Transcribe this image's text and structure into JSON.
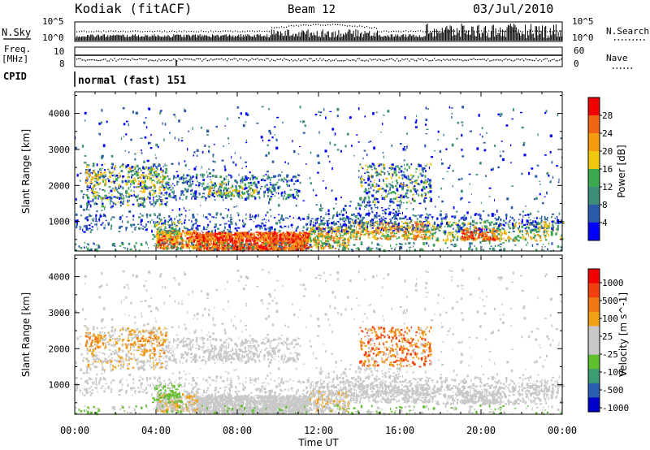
{
  "header": {
    "station": "Kodiak (fitACF)",
    "beam": "Beam 12",
    "date": "03/Jul/2010"
  },
  "strips": {
    "nsky_label": "N.Sky",
    "nsky_ticks": [
      "10^5",
      "10^0"
    ],
    "nsearch_label": "N.Search",
    "freq_label_1": "Freq.",
    "freq_label_2": "[MHz]",
    "freq_ticks": [
      "10",
      "8"
    ],
    "nave_label": "Nave",
    "nave_ticks": [
      "60",
      "0"
    ],
    "cpid_label": "CPID",
    "cpid_value": "normal (fast) 151"
  },
  "colors": {
    "power": [
      "#0000ff",
      "#2a5aa8",
      "#3d8c78",
      "#3ca850",
      "#f0c810",
      "#f59b0f",
      "#f06414",
      "#f00000"
    ],
    "velocity": [
      "#0000cc",
      "#2a5fb0",
      "#3d9c73",
      "#60c030",
      "#c8c8c8",
      "#c8c8c8",
      "#f0a014",
      "#f07814",
      "#f04010",
      "#f00000"
    ]
  },
  "chart_data": [
    {
      "type": "heatmap",
      "panel": "power",
      "ylabel": "Slant Range [km]",
      "yticks": [
        "4000",
        "3000",
        "2000",
        "1000"
      ],
      "ylim": [
        180,
        4600
      ],
      "xlim": [
        0,
        24
      ],
      "colorbar": {
        "label": "Power [dB]",
        "ticks": [
          "28",
          "24",
          "20",
          "16",
          "12",
          "8",
          "4"
        ],
        "range": [
          0,
          32
        ]
      }
    },
    {
      "type": "heatmap",
      "panel": "velocity",
      "ylabel": "Slant Range [km]",
      "yticks": [
        "4000",
        "3000",
        "2000",
        "1000"
      ],
      "ylim": [
        180,
        4600
      ],
      "xlim": [
        0,
        24
      ],
      "xlabel": "Time UT",
      "xticks": [
        "00:00",
        "04:00",
        "08:00",
        "12:00",
        "16:00",
        "20:00",
        "00:00"
      ],
      "colorbar": {
        "label": "Velocity [m s^-1]",
        "ticks": [
          "1000",
          "500",
          "100",
          "25",
          "-25",
          "-100",
          "-500",
          "-1000"
        ]
      }
    }
  ]
}
